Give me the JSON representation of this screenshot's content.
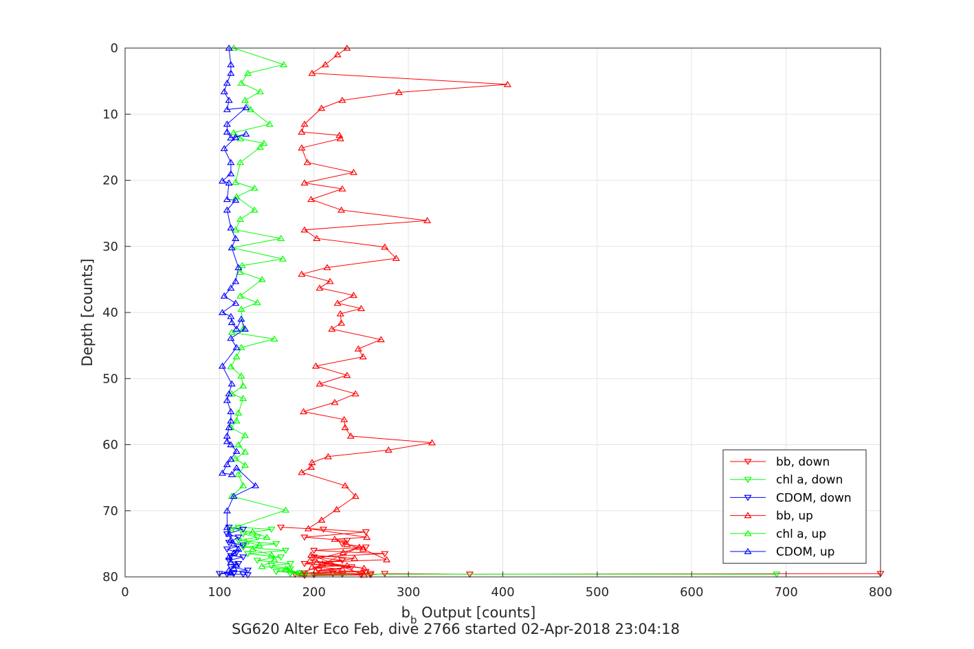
{
  "chart_data": {
    "type": "line",
    "title": "",
    "caption": "SG620 Alter Eco Feb, dive 2766 started 02-Apr-2018 23:04:18",
    "xlabel_main": "b",
    "xlabel_sub": "b",
    "xlabel_rest": " Output [counts]",
    "ylabel": "Depth [counts]",
    "xlim": [
      0,
      800
    ],
    "ylim": [
      0,
      80
    ],
    "y_reversed": true,
    "grid": true,
    "legend_position": "bottom-right",
    "xticks": [
      0,
      100,
      200,
      300,
      400,
      500,
      600,
      700,
      800
    ],
    "yticks": [
      0,
      10,
      20,
      30,
      40,
      50,
      60,
      70,
      80
    ],
    "series": [
      {
        "name": "bb, down",
        "color": "#ff0000",
        "marker": "down",
        "x": [
          165,
          210,
          255,
          190,
          235,
          230,
          255,
          200,
          275,
          200,
          230,
          190,
          240,
          205,
          255,
          190,
          220,
          260,
          180,
          230,
          200,
          250,
          190,
          260,
          275,
          365,
          800
        ],
        "y": [
          72.5,
          72.8,
          73.2,
          74.0,
          74.5,
          75.0,
          75.5,
          76.0,
          76.5,
          77.0,
          77.5,
          78.0,
          78.5,
          79.0,
          79.2,
          79.4,
          79.5,
          79.5,
          79.6,
          79.6,
          79.7,
          79.7,
          79.8,
          79.7,
          79.5,
          79.6,
          79.5
        ]
      },
      {
        "name": "chl a, down",
        "color": "#00ff00",
        "marker": "down",
        "x": [
          120,
          155,
          125,
          140,
          120,
          160,
          125,
          170,
          130,
          165,
          140,
          175,
          155,
          175,
          160,
          185,
          175,
          190,
          690
        ],
        "y": [
          72.5,
          72.8,
          73.5,
          74.0,
          74.5,
          75.0,
          75.5,
          76.0,
          76.5,
          77.0,
          77.5,
          78.0,
          78.3,
          78.8,
          79.2,
          79.4,
          79.5,
          79.6,
          79.6
        ]
      },
      {
        "name": "CDOM, down",
        "color": "#0000ff",
        "marker": "down",
        "x": [
          110,
          125,
          108,
          120,
          110,
          125,
          108,
          118,
          112,
          125,
          110,
          120,
          112,
          130,
          100,
          115,
          108,
          125,
          130
        ],
        "y": [
          72.5,
          72.8,
          73.5,
          74.0,
          74.8,
          75.2,
          75.8,
          76.3,
          76.8,
          77.0,
          77.5,
          78.0,
          78.5,
          79.0,
          79.5,
          79.5,
          79.6,
          79.6,
          79.7
        ]
      },
      {
        "name": "bb, up",
        "color": "#ff0000",
        "marker": "up",
        "x": [
          235,
          225,
          212,
          198,
          405,
          290,
          230,
          208,
          190,
          187,
          227,
          228,
          187,
          193,
          242,
          190,
          230,
          197,
          229,
          320,
          190,
          203,
          275,
          287,
          214,
          187,
          217,
          206,
          242,
          225,
          250,
          228,
          229,
          219,
          271,
          247,
          252,
          202,
          235,
          206,
          244,
          222,
          189,
          232,
          233,
          239,
          325,
          279,
          215,
          198,
          197,
          187,
          233,
          244,
          224,
          208,
          194,
          256,
          222,
          235,
          252,
          277,
          203,
          235,
          198,
          230,
          202,
          253,
          197,
          243,
          209,
          253,
          196,
          231,
          248,
          187
        ],
        "y": [
          0.0,
          1.0,
          2.5,
          3.8,
          5.5,
          6.7,
          7.9,
          9.1,
          11.5,
          12.7,
          13.2,
          13.7,
          15.1,
          17.3,
          18.8,
          20.4,
          21.3,
          22.9,
          24.5,
          26.1,
          27.5,
          28.8,
          30.1,
          31.8,
          33.2,
          34.2,
          35.3,
          36.3,
          37.4,
          38.6,
          39.4,
          40.2,
          41.6,
          42.5,
          44.1,
          45.5,
          46.7,
          48.1,
          49.5,
          50.8,
          52.3,
          53.6,
          55.0,
          56.2,
          57.4,
          58.7,
          59.7,
          60.8,
          61.8,
          62.7,
          63.4,
          64.2,
          66.2,
          67.8,
          69.8,
          71.4,
          72.7,
          74.0,
          74.3,
          75.1,
          75.8,
          77.4,
          77.8,
          78.3,
          78.5,
          78.8,
          79.1,
          79.7,
          76.7,
          77.2,
          78.0,
          78.7,
          77.5,
          76.3,
          75.5,
          79.5
        ]
      },
      {
        "name": "chl a, up",
        "color": "#00ff00",
        "marker": "up",
        "x": [
          115,
          168,
          130,
          123,
          143,
          127,
          133,
          153,
          115,
          122,
          147,
          143,
          122,
          117,
          137,
          118,
          137,
          122,
          117,
          165,
          113,
          167,
          124,
          122,
          145,
          122,
          140,
          123,
          125,
          113,
          158,
          123,
          118,
          112,
          123,
          125,
          113,
          125,
          120,
          118,
          112,
          127,
          120,
          127,
          117,
          127,
          120,
          125,
          113,
          170,
          112,
          135,
          150,
          128,
          142,
          135,
          155,
          158,
          145,
          170,
          175,
          185
        ],
        "y": [
          0.0,
          2.5,
          3.8,
          5.3,
          6.6,
          7.9,
          9.3,
          11.5,
          12.8,
          13.7,
          14.4,
          15.0,
          17.3,
          20.3,
          21.2,
          22.5,
          24.5,
          25.9,
          27.5,
          28.8,
          30.2,
          31.9,
          32.9,
          33.9,
          35.0,
          37.5,
          38.5,
          39.5,
          42.5,
          43.0,
          44.0,
          45.3,
          46.7,
          48.2,
          49.6,
          51.1,
          52.3,
          53.0,
          55.2,
          56.4,
          57.4,
          58.6,
          60.0,
          61.1,
          62.1,
          63.1,
          64.5,
          66.2,
          67.8,
          69.9,
          72.7,
          73.2,
          74.0,
          74.7,
          75.2,
          75.8,
          76.7,
          77.4,
          78.4,
          78.8,
          79.0,
          79.4
        ]
      },
      {
        "name": "CDOM, up",
        "color": "#0000ff",
        "marker": "up",
        "x": [
          110,
          112,
          112,
          108,
          105,
          110,
          108,
          128,
          108,
          108,
          112,
          128,
          117,
          105,
          112,
          112,
          103,
          110,
          108,
          117,
          108,
          112,
          117,
          113,
          120,
          117,
          112,
          105,
          117,
          103,
          112,
          113,
          118,
          123,
          127,
          112,
          118,
          103,
          113,
          110,
          108,
          112,
          112,
          110,
          108,
          108,
          112,
          118,
          112,
          108,
          103,
          113,
          118,
          138,
          115,
          108,
          108,
          110,
          112,
          115,
          120,
          115,
          110,
          112,
          118,
          115,
          110,
          112
        ],
        "y": [
          0.0,
          2.5,
          3.8,
          5.3,
          6.6,
          7.9,
          9.3,
          9.0,
          11.5,
          12.7,
          13.6,
          13.0,
          13.5,
          15.2,
          17.3,
          19.0,
          20.1,
          20.4,
          22.9,
          23.0,
          24.5,
          27.2,
          28.8,
          30.2,
          33.2,
          35.3,
          36.3,
          37.5,
          38.6,
          40.0,
          40.6,
          41.5,
          42.5,
          41.0,
          42.5,
          43.9,
          45.3,
          48.1,
          50.8,
          52.3,
          53.3,
          55.0,
          56.4,
          57.4,
          58.7,
          59.5,
          60.0,
          61.0,
          62.2,
          63.0,
          64.3,
          64.5,
          63.5,
          66.2,
          67.8,
          70.0,
          72.5,
          73.5,
          74.4,
          75.0,
          75.8,
          76.4,
          77.0,
          77.8,
          78.2,
          78.7,
          79.0,
          79.4
        ]
      }
    ]
  }
}
